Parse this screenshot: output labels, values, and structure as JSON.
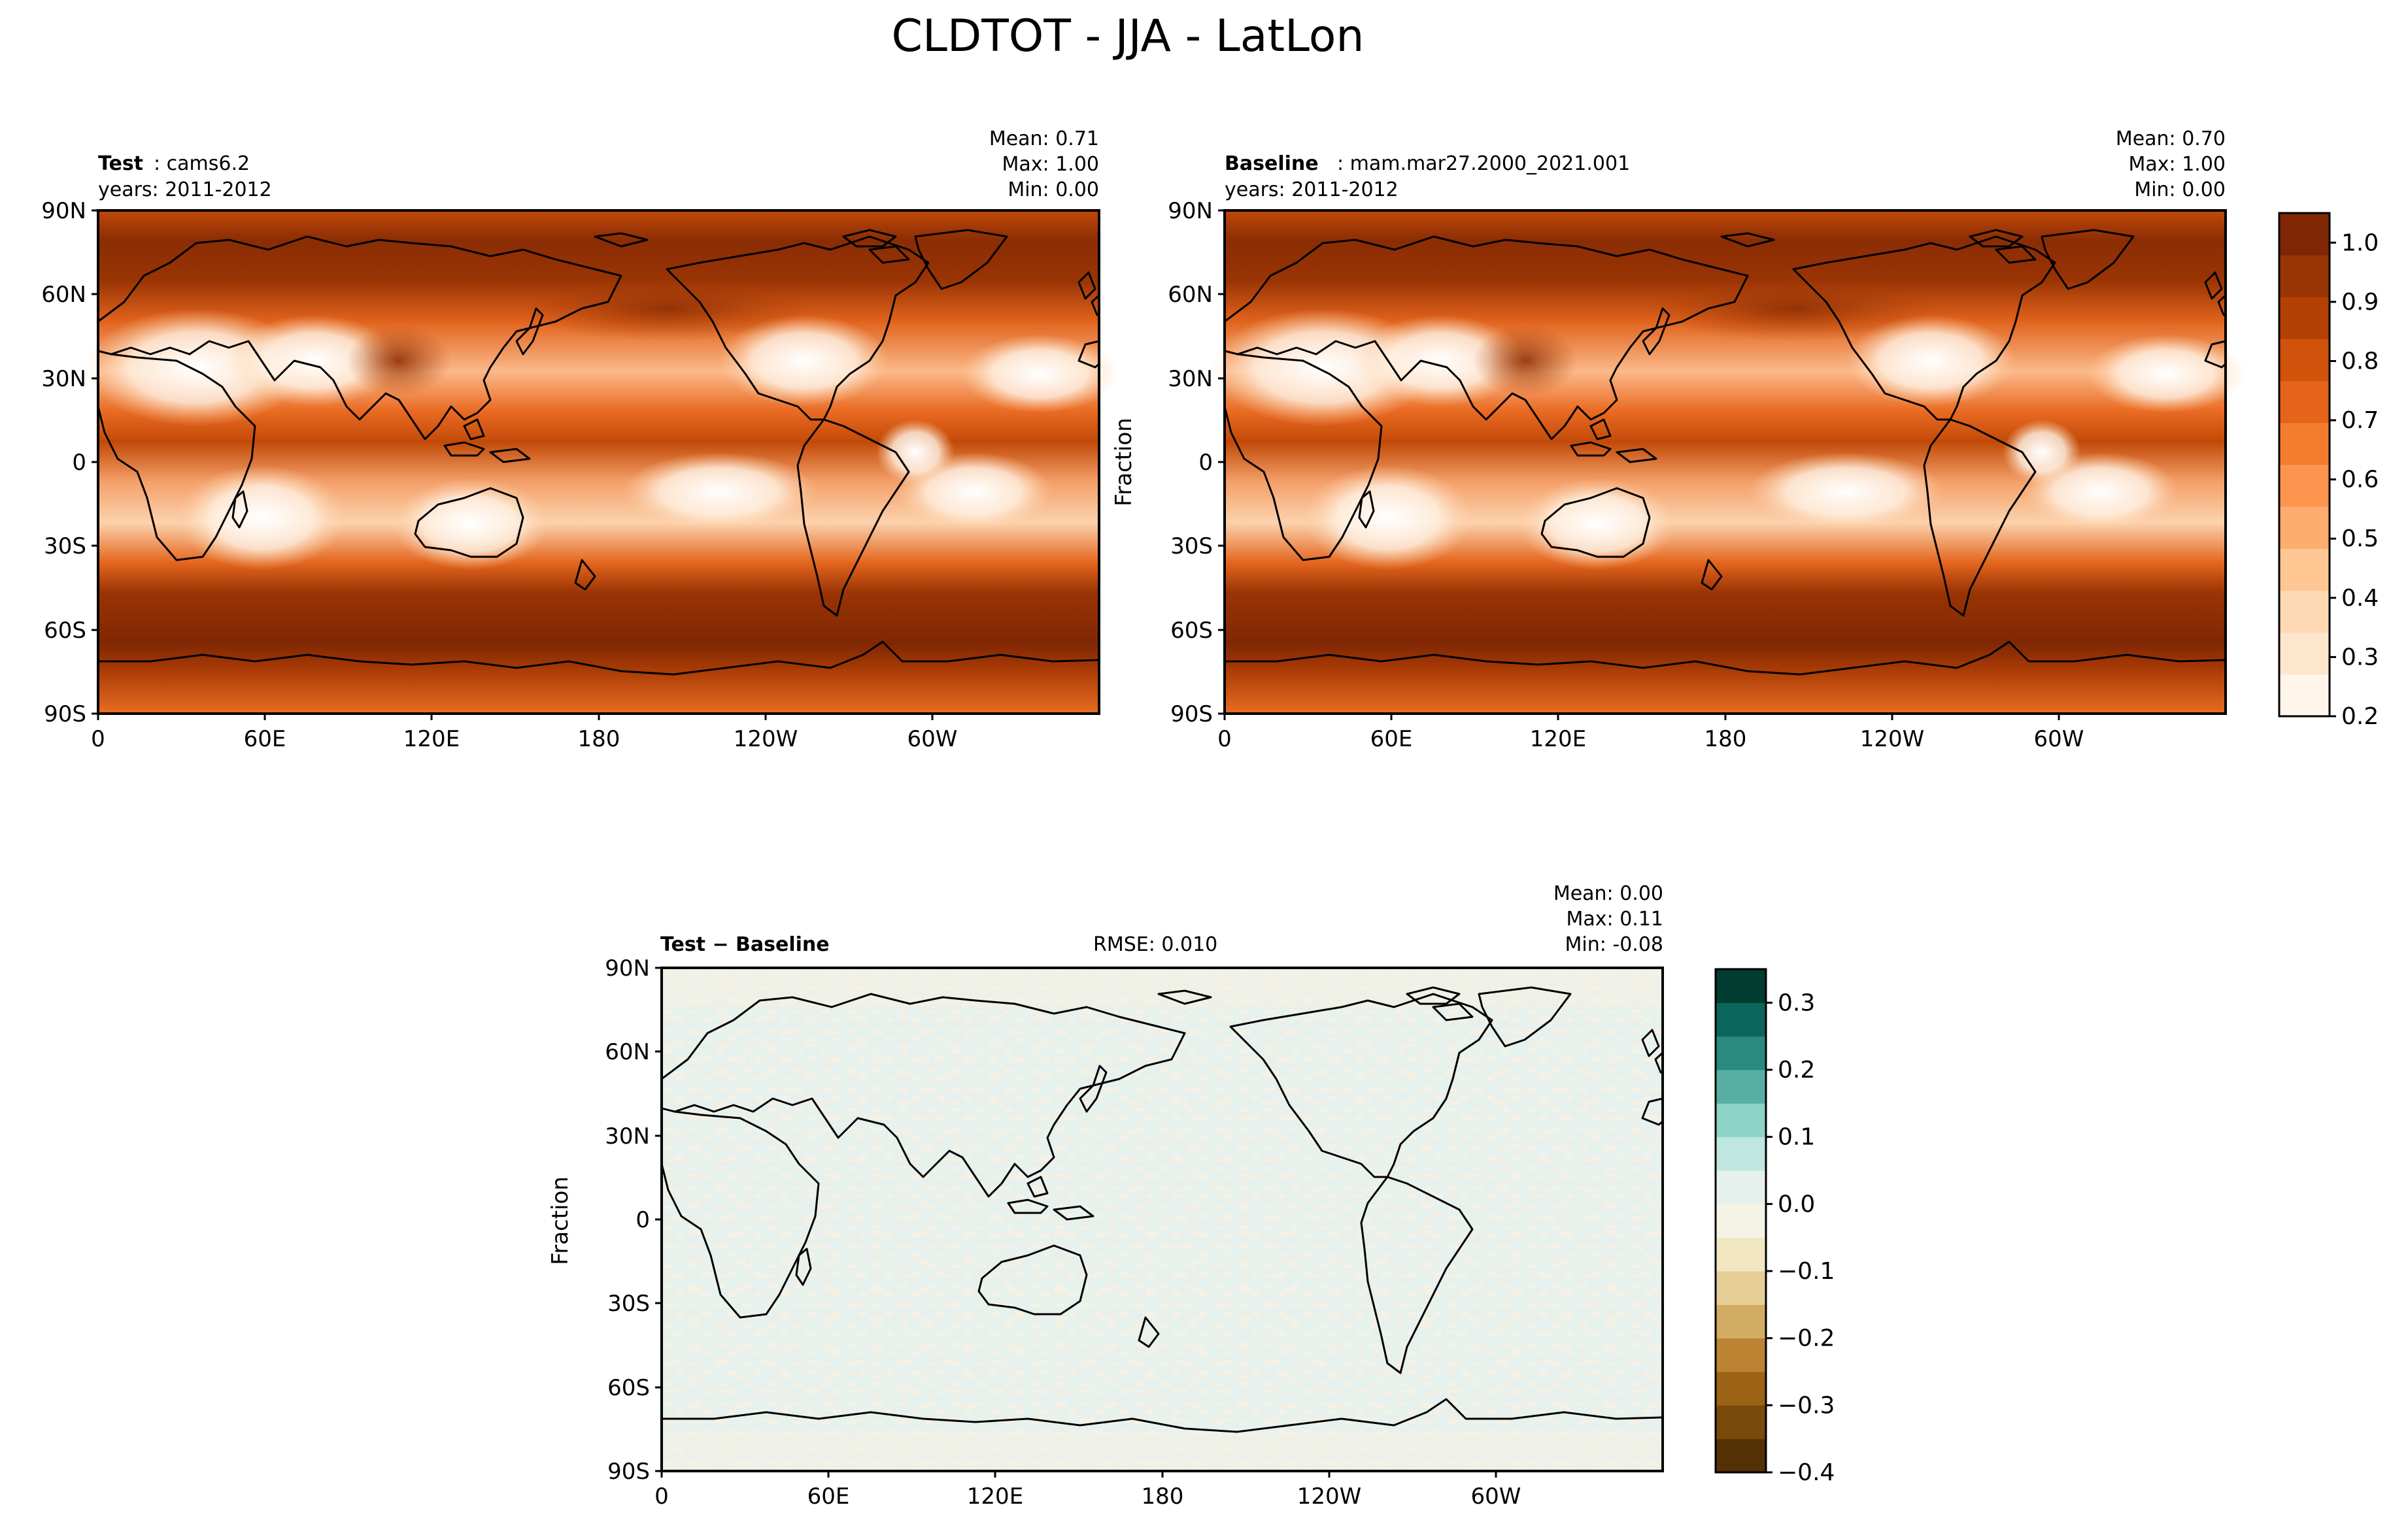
{
  "figure": {
    "title": "CLDTOT - JJA - LatLon"
  },
  "colors": {
    "full_field_scale": [
      "#fff5eb",
      "#fee6ce",
      "#fdd9b4",
      "#fdc692",
      "#fdad6d",
      "#fd954f",
      "#f47c2d",
      "#e5631a",
      "#d1520a",
      "#b34004",
      "#993404",
      "#7f2704"
    ],
    "diff_scale": [
      "#543005",
      "#7a4a0a",
      "#9c6216",
      "#bb8332",
      "#d2ac62",
      "#e6cf97",
      "#f3e6c3",
      "#f5f2e6",
      "#e6f1ee",
      "#bfe6df",
      "#8ed3c7",
      "#57afa4",
      "#2a8a80",
      "#0a665c",
      "#003c30"
    ],
    "coastline": "#000000"
  },
  "panels": [
    {
      "id": "test",
      "label_bold": "Test",
      "label_rest": ": cams6.2",
      "years": "years: 2011-2012",
      "stats": [
        "Mean:  0.71",
        "Max:  1.00",
        "Min:  0.00"
      ],
      "ylabel": ""
    },
    {
      "id": "baseline",
      "label_bold": "Baseline",
      "label_rest": ": mam.mar27.2000_2021.001",
      "years": "years: 2011-2012",
      "stats": [
        "Mean:  0.70",
        "Max:  1.00",
        "Min:  0.00"
      ],
      "ylabel": "Fraction"
    },
    {
      "id": "diff",
      "label_bold": "Test − Baseline",
      "label_rest": "",
      "years": "",
      "rmse": "RMSE: 0.010",
      "stats": [
        "Mean:  0.00",
        "Max:  0.11",
        "Min: -0.08"
      ],
      "ylabel": "Fraction"
    }
  ],
  "axes": {
    "lat_ticks": [
      "90N",
      "60N",
      "30N",
      "0",
      "30S",
      "60S",
      "90S"
    ],
    "lon_ticks": [
      "0",
      "60E",
      "120E",
      "180",
      "120W",
      "60W"
    ]
  },
  "colorbars": [
    {
      "id": "full",
      "ticks": [
        "1.0",
        "0.9",
        "0.8",
        "0.7",
        "0.6",
        "0.5",
        "0.4",
        "0.3",
        "0.2"
      ],
      "range": [
        0.2,
        1.05
      ]
    },
    {
      "id": "diff",
      "ticks": [
        "0.3",
        "0.2",
        "0.1",
        "0.0",
        "−0.1",
        "−0.2",
        "−0.3",
        "−0.4"
      ],
      "range": [
        -0.4,
        0.35
      ]
    }
  ],
  "chart_data": {
    "type": "heatmap",
    "title": "CLDTOT - JJA - LatLon",
    "variable": "CLDTOT",
    "season": "JJA",
    "units": "Fraction",
    "xlabel": "",
    "ylabel": "Fraction",
    "xlim": [
      0,
      360
    ],
    "ylim": [
      -90,
      90
    ],
    "x_ticks": [
      "0",
      "60E",
      "120E",
      "180",
      "120W",
      "60W"
    ],
    "y_ticks": [
      "90N",
      "60N",
      "30N",
      "0",
      "30S",
      "60S",
      "90S"
    ],
    "panels": [
      {
        "name": "Test",
        "case": "cams6.2",
        "years": "2011-2012",
        "mean": 0.71,
        "max": 1.0,
        "min": 0.0,
        "colorbar_range": [
          0.2,
          1.05
        ]
      },
      {
        "name": "Baseline",
        "case": "mam.mar27.2000_2021.001",
        "years": "2011-2012",
        "mean": 0.7,
        "max": 1.0,
        "min": 0.0,
        "colorbar_range": [
          0.2,
          1.05
        ]
      },
      {
        "name": "Test − Baseline",
        "mean": 0.0,
        "max": 0.11,
        "min": -0.08,
        "rmse": 0.01,
        "colorbar_range": [
          -0.4,
          0.35
        ]
      }
    ]
  }
}
